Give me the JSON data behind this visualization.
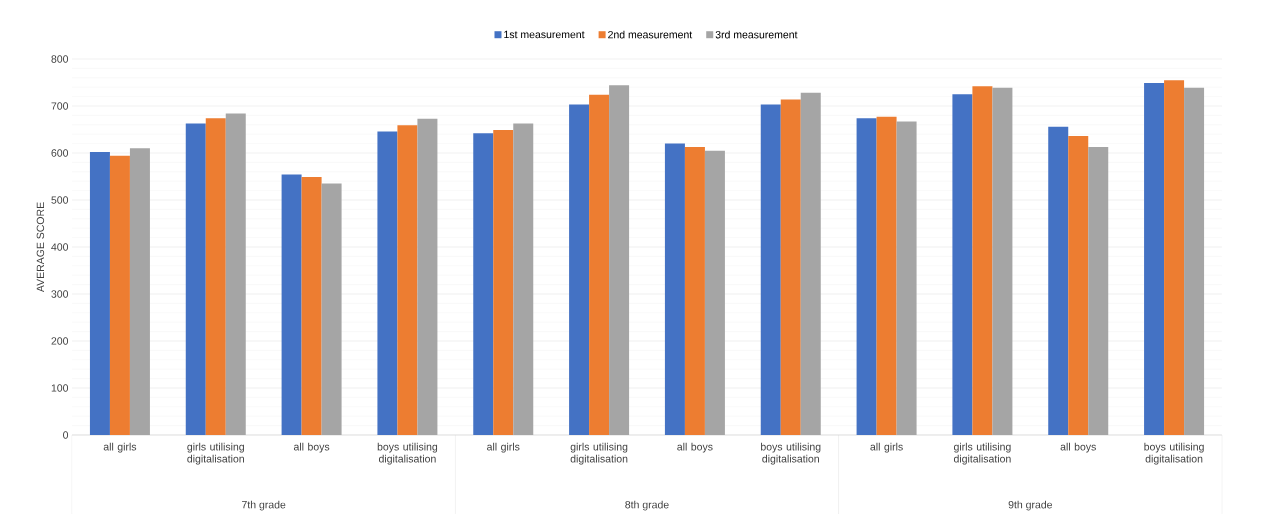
{
  "chart_data": {
    "type": "bar",
    "ylabel": "AVERAGE SCORE",
    "categories": [
      "all girls",
      "girls utilising digitalisation",
      "all boys",
      "boys utilising digitalisation",
      "all girls",
      "girls utilising digitalisation",
      "all boys",
      "boys utilising digitalisation",
      "all girls",
      "girls utilising digitalisation",
      "all boys",
      "boys utilising digitalisation"
    ],
    "series": [
      {
        "name": "1st measurement",
        "color": "#4472c4",
        "values": [
          602,
          663,
          554,
          646,
          642,
          703,
          620,
          703,
          674,
          725,
          656,
          749
        ]
      },
      {
        "name": "2nd measurement",
        "color": "#ed7d31",
        "values": [
          594,
          674,
          549,
          659,
          649,
          724,
          613,
          714,
          677,
          742,
          636,
          755
        ]
      },
      {
        "name": "3rd measurement",
        "color": "#a5a5a5",
        "values": [
          610,
          684,
          535,
          673,
          663,
          744,
          605,
          728,
          667,
          739,
          613,
          739
        ]
      }
    ],
    "annotations": [
      "7th grade",
      "8th grade",
      "9th grade"
    ],
    "ylim": [
      0,
      800
    ],
    "yticks": [
      0,
      100,
      200,
      300,
      400,
      500,
      600,
      700,
      800
    ],
    "grid": "y",
    "legend": "top"
  }
}
